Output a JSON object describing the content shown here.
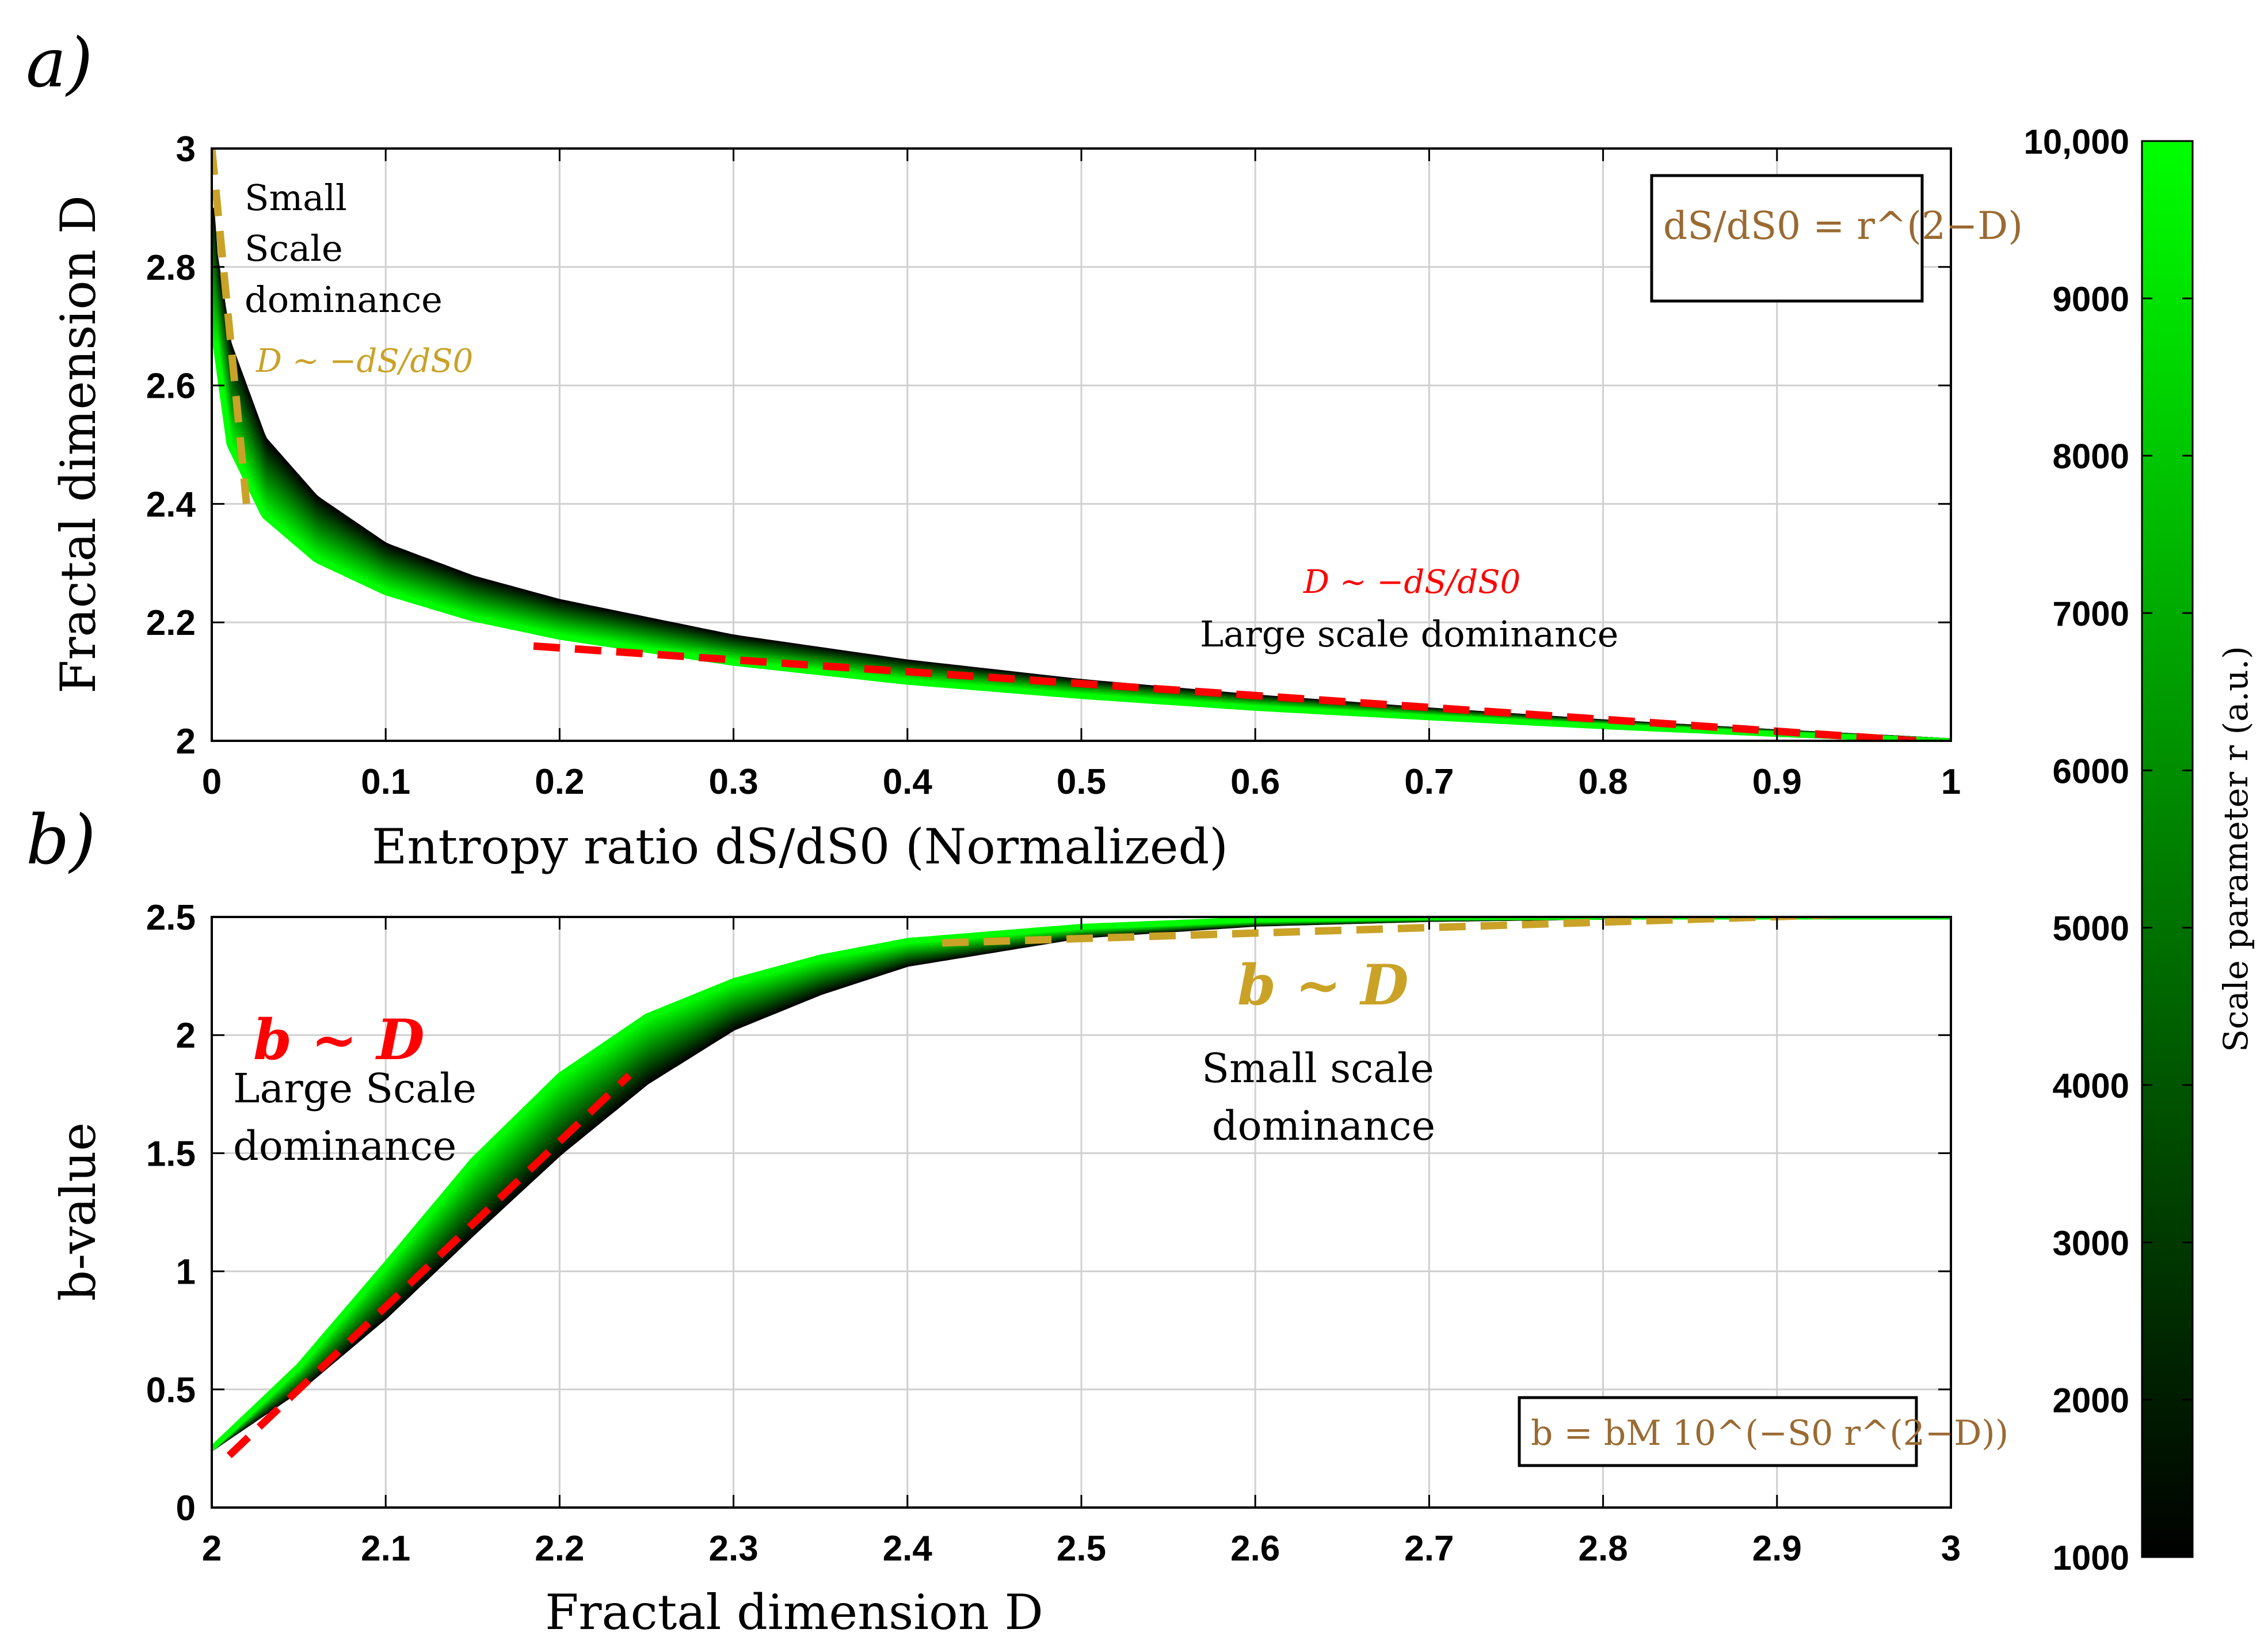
{
  "chart_data": [
    {
      "type": "line",
      "panel_label": "a)",
      "title": "",
      "xlabel": "Entropy ratio dS/dS0 (Normalized)",
      "xlabel_parts": {
        "text": "Entropy ratio ",
        "var1": "dS",
        "slash": "/",
        "var2": "dS",
        "sub": "0",
        "tail": " (Normalized)"
      },
      "ylabel": "Fractal dimension D",
      "ylabel_parts": {
        "text": "Fractal dimension ",
        "var": "D"
      },
      "xlim": [
        0,
        1
      ],
      "ylim": [
        2,
        3
      ],
      "grid": true,
      "xticks": [
        "0",
        "0.1",
        "0.2",
        "0.3",
        "0.4",
        "0.5",
        "0.6",
        "0.7",
        "0.8",
        "0.9",
        "1"
      ],
      "yticks": [
        "2",
        "2.2",
        "2.4",
        "2.6",
        "2.8",
        "3"
      ],
      "model": "dS/dS0 = r^(2-D)",
      "series": [
        {
          "name": "r = 1000",
          "color": "#000000",
          "x": [
            0.0,
            0.002,
            0.01,
            0.03,
            0.06,
            0.1,
            0.15,
            0.2,
            0.3,
            0.4,
            0.5,
            0.6,
            0.7,
            0.8,
            0.9,
            1.0
          ],
          "y": [
            2.9,
            2.82,
            2.67,
            2.51,
            2.41,
            2.33,
            2.275,
            2.235,
            2.175,
            2.133,
            2.1,
            2.074,
            2.052,
            2.032,
            2.015,
            2.0
          ]
        },
        {
          "name": "r = 10000",
          "color": "#00ff00",
          "x": [
            0.0,
            0.002,
            0.01,
            0.03,
            0.06,
            0.1,
            0.15,
            0.2,
            0.3,
            0.4,
            0.5,
            0.6,
            0.7,
            0.8,
            0.9,
            1.0
          ],
          "y": [
            2.67,
            2.67,
            2.5,
            2.38,
            2.305,
            2.25,
            2.206,
            2.175,
            2.131,
            2.099,
            2.075,
            2.055,
            2.039,
            2.024,
            2.011,
            2.0
          ]
        }
      ],
      "asymptotes": [
        {
          "name": "small-scale trend",
          "color": "#c9a227",
          "x": [
            0.0,
            0.02
          ],
          "y": [
            3.0,
            2.4
          ]
        },
        {
          "name": "large-scale trend",
          "color": "#ff0000",
          "x": [
            0.185,
            0.98
          ],
          "y": [
            2.16,
            2.0
          ]
        }
      ],
      "annotations": {
        "small_scale_line1": "Small",
        "small_scale_line2": "Scale",
        "small_scale_line3": "dominance",
        "small_scale_formula": "D ~ −dS/dS0",
        "large_scale_formula": "D ~ −dS/dS0",
        "large_scale_text": "Large scale dominance",
        "equation_box": "dS/dS0 = r^(2−D)"
      }
    },
    {
      "type": "line",
      "panel_label": "b)",
      "title": "",
      "xlabel": "Fractal dimension D",
      "xlabel_parts": {
        "text": "Fractal dimension ",
        "var": "D"
      },
      "ylabel": "b-value",
      "ylabel_parts": {
        "var": "b",
        "text": "-value"
      },
      "xlim": [
        2,
        3
      ],
      "ylim": [
        0,
        2.5
      ],
      "grid": true,
      "xticks": [
        "2",
        "2.1",
        "2.2",
        "2.3",
        "2.4",
        "2.5",
        "2.6",
        "2.7",
        "2.8",
        "2.9",
        "3"
      ],
      "yticks": [
        "0",
        "0.5",
        "1",
        "1.5",
        "2",
        "2.5"
      ],
      "model": "b = bM 10^(−S0 r^(2−D))",
      "series": [
        {
          "name": "r = 1000",
          "color": "#000000",
          "x": [
            2.0,
            2.05,
            2.1,
            2.15,
            2.2,
            2.25,
            2.3,
            2.35,
            2.4,
            2.5,
            2.6,
            2.7,
            2.8,
            3.0
          ],
          "y": [
            0.25,
            0.5,
            0.81,
            1.16,
            1.5,
            1.8,
            2.03,
            2.18,
            2.3,
            2.42,
            2.47,
            2.49,
            2.5,
            2.5
          ]
        },
        {
          "name": "r = 10000",
          "color": "#00ff00",
          "x": [
            2.0,
            2.05,
            2.1,
            2.15,
            2.2,
            2.25,
            2.3,
            2.35,
            2.4,
            2.5,
            2.6,
            2.7,
            2.8,
            3.0
          ],
          "y": [
            0.25,
            0.6,
            1.03,
            1.47,
            1.83,
            2.08,
            2.23,
            2.33,
            2.4,
            2.46,
            2.49,
            2.5,
            2.5,
            2.5
          ]
        }
      ],
      "asymptotes": [
        {
          "name": "large-scale trend",
          "color": "#ff0000",
          "x": [
            2.01,
            2.24
          ],
          "y": [
            0.22,
            1.83
          ]
        },
        {
          "name": "small-scale trend",
          "color": "#c9a227",
          "x": [
            2.42,
            2.98
          ],
          "y": [
            2.39,
            2.52
          ]
        }
      ],
      "annotations": {
        "large_scale_formula": "b ~ D",
        "large_scale_line1": "Large Scale",
        "large_scale_line2": "dominance",
        "small_scale_formula": "b ~ D",
        "small_scale_line1": "Small scale",
        "small_scale_line2": "dominance",
        "equation_box": "b = bM 10^(−S0 r^(2−D))"
      }
    }
  ],
  "colorbar": {
    "label": "Scale parameter r (a.u.)",
    "label_parts": {
      "text": "Scale parameter ",
      "var": "r",
      "tail": " (a.u.)"
    },
    "range": [
      1000,
      10000
    ],
    "ticks": [
      "1000",
      "2000",
      "3000",
      "4000",
      "5000",
      "6000",
      "7000",
      "8000",
      "9000",
      "10,000"
    ],
    "colormap": [
      "#000000",
      "#00ff00"
    ]
  }
}
